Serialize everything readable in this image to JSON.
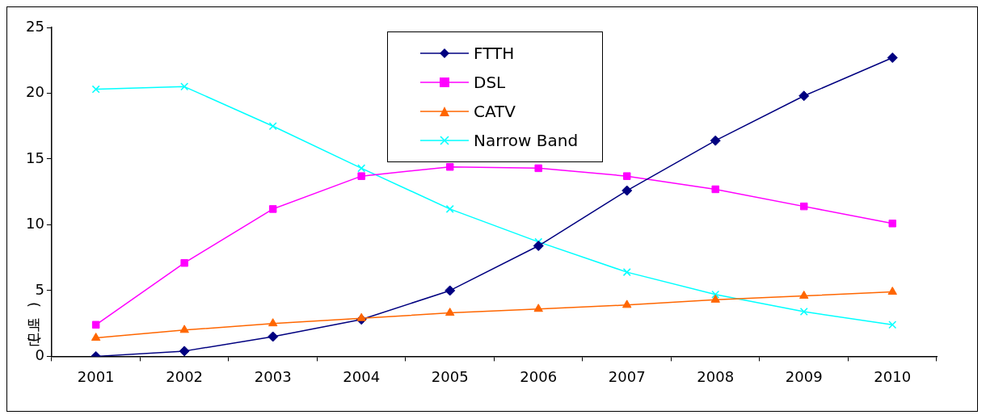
{
  "chart_data": {
    "type": "line",
    "ylabel": "(백만)",
    "categories": [
      "2001",
      "2002",
      "2003",
      "2004",
      "2005",
      "2006",
      "2007",
      "2008",
      "2009",
      "2010"
    ],
    "series": [
      {
        "name": "FTTH",
        "color": "#000080",
        "marker": "diamond",
        "values": [
          0,
          0.4,
          1.5,
          2.8,
          5.0,
          8.4,
          12.6,
          16.4,
          19.8,
          22.7
        ]
      },
      {
        "name": "DSL",
        "color": "#ff00ff",
        "marker": "square",
        "values": [
          2.4,
          7.1,
          11.2,
          13.7,
          14.4,
          14.3,
          13.7,
          12.7,
          11.4,
          10.1
        ]
      },
      {
        "name": "CATV",
        "color": "#ff6600",
        "marker": "triangle",
        "values": [
          1.4,
          2.0,
          2.5,
          2.9,
          3.3,
          3.6,
          3.9,
          4.3,
          4.6,
          4.9
        ]
      },
      {
        "name": "Narrow Band",
        "color": "#00ffff",
        "marker": "cross",
        "values": [
          20.3,
          20.5,
          17.5,
          14.3,
          11.2,
          8.7,
          6.4,
          4.7,
          3.4,
          2.4
        ]
      }
    ],
    "ylim": [
      0,
      25
    ],
    "yticks": [
      0,
      5,
      10,
      15,
      20,
      25
    ],
    "grid": false,
    "legend": "top"
  }
}
